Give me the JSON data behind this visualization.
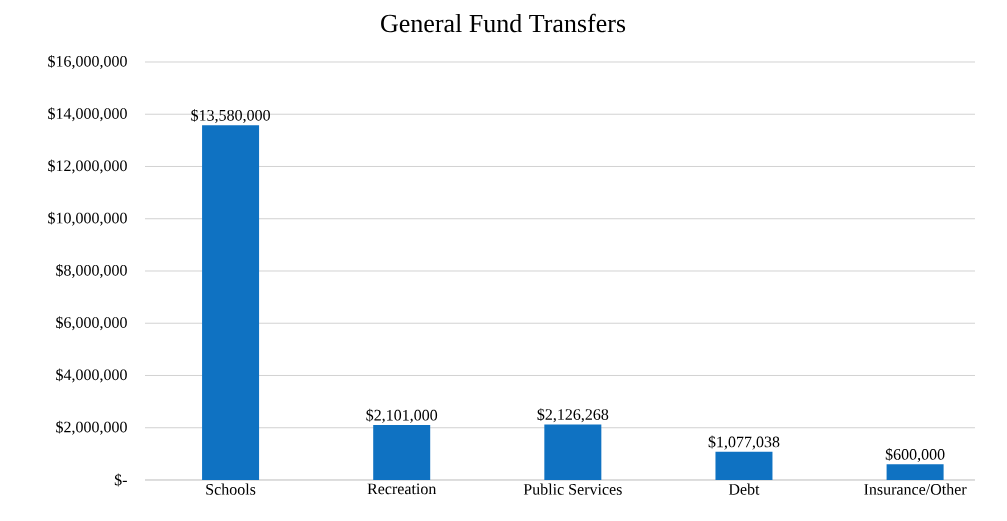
{
  "chart_data": {
    "type": "bar",
    "title": "General Fund Transfers",
    "categories": [
      "Schools",
      "Recreation",
      "Public Services",
      "Debt",
      "Insurance/Other"
    ],
    "values": [
      13580000,
      2101000,
      2126268,
      1077038,
      600000
    ],
    "value_labels": [
      "$13,580,000",
      "$2,101,000",
      "$2,126,268",
      "$1,077,038",
      "$600,000"
    ],
    "color": "#0f72c2",
    "ylim": [
      0,
      16000000
    ],
    "yticks": [
      {
        "value": 0,
        "label": "$-"
      },
      {
        "value": 2000000,
        "label": "$2,000,000"
      },
      {
        "value": 4000000,
        "label": "$4,000,000"
      },
      {
        "value": 6000000,
        "label": "$6,000,000"
      },
      {
        "value": 8000000,
        "label": "$8,000,000"
      },
      {
        "value": 10000000,
        "label": "$10,000,000"
      },
      {
        "value": 12000000,
        "label": "$12,000,000"
      },
      {
        "value": 14000000,
        "label": "$14,000,000"
      },
      {
        "value": 16000000,
        "label": "$16,000,000"
      }
    ],
    "grid": "y"
  }
}
